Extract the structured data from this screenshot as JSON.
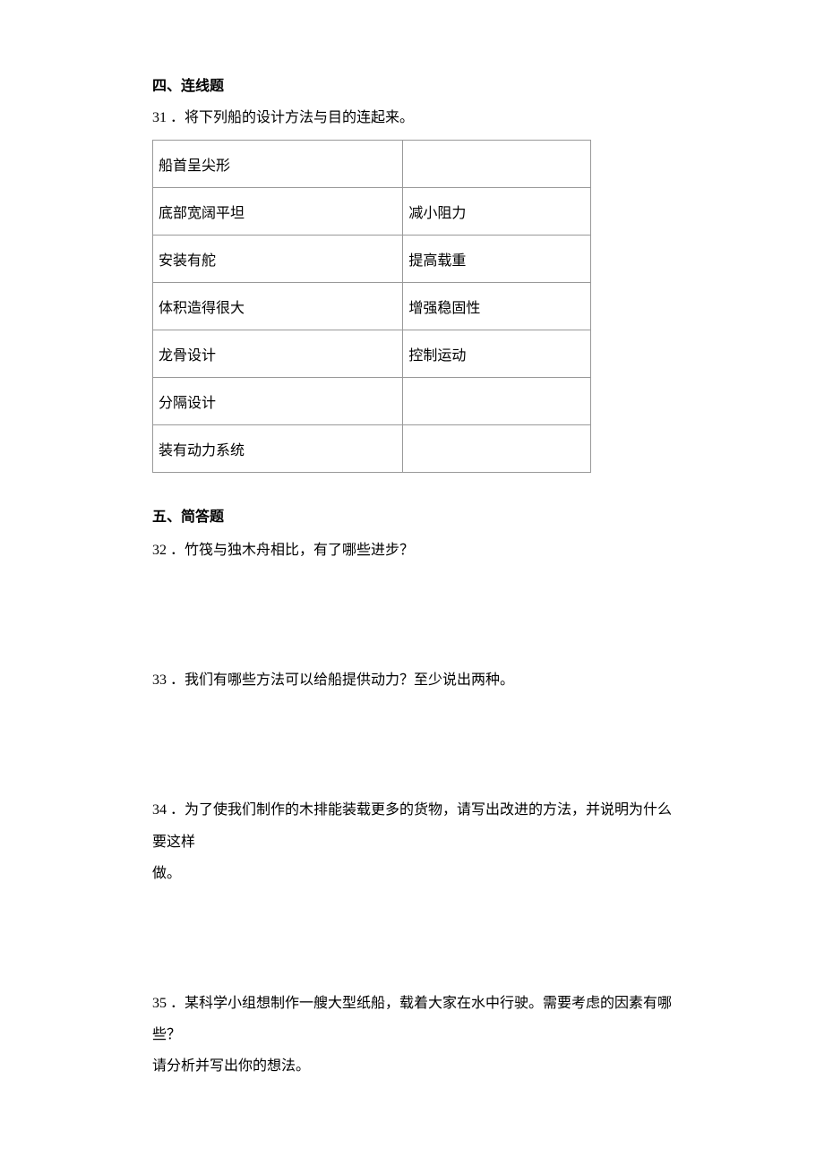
{
  "section4": {
    "header": "四、连线题",
    "q31": {
      "number": "31",
      "text": "．将下列船的设计方法与目的连起来。"
    },
    "table": {
      "rows": [
        {
          "left": "船首呈尖形",
          "right": ""
        },
        {
          "left": "底部宽阔平坦",
          "right": "减小阻力"
        },
        {
          "left": "安装有舵",
          "right": "提高载重"
        },
        {
          "left": "体积造得很大",
          "right": "增强稳固性"
        },
        {
          "left": "龙骨设计",
          "right": "控制运动"
        },
        {
          "left": "分隔设计",
          "right": ""
        },
        {
          "left": "装有动力系统",
          "right": ""
        }
      ]
    }
  },
  "section5": {
    "header": "五、简答题",
    "q32": {
      "number": "32",
      "text": "．竹筏与独木舟相比，有了哪些进步？"
    },
    "q33": {
      "number": "33",
      "text": "．我们有哪些方法可以给船提供动力？至少说出两种。"
    },
    "q34": {
      "number": "34",
      "line1": "．为了使我们制作的木排能装载更多的货物，请写出改进的方法，并说明为什么要这样",
      "line2": "做。"
    },
    "q35": {
      "number": "35",
      "line1": "．某科学小组想制作一艘大型纸船，载着大家在水中行驶。需要考虑的因素有哪些？",
      "line2": "请分析并写出你的想法。"
    }
  }
}
